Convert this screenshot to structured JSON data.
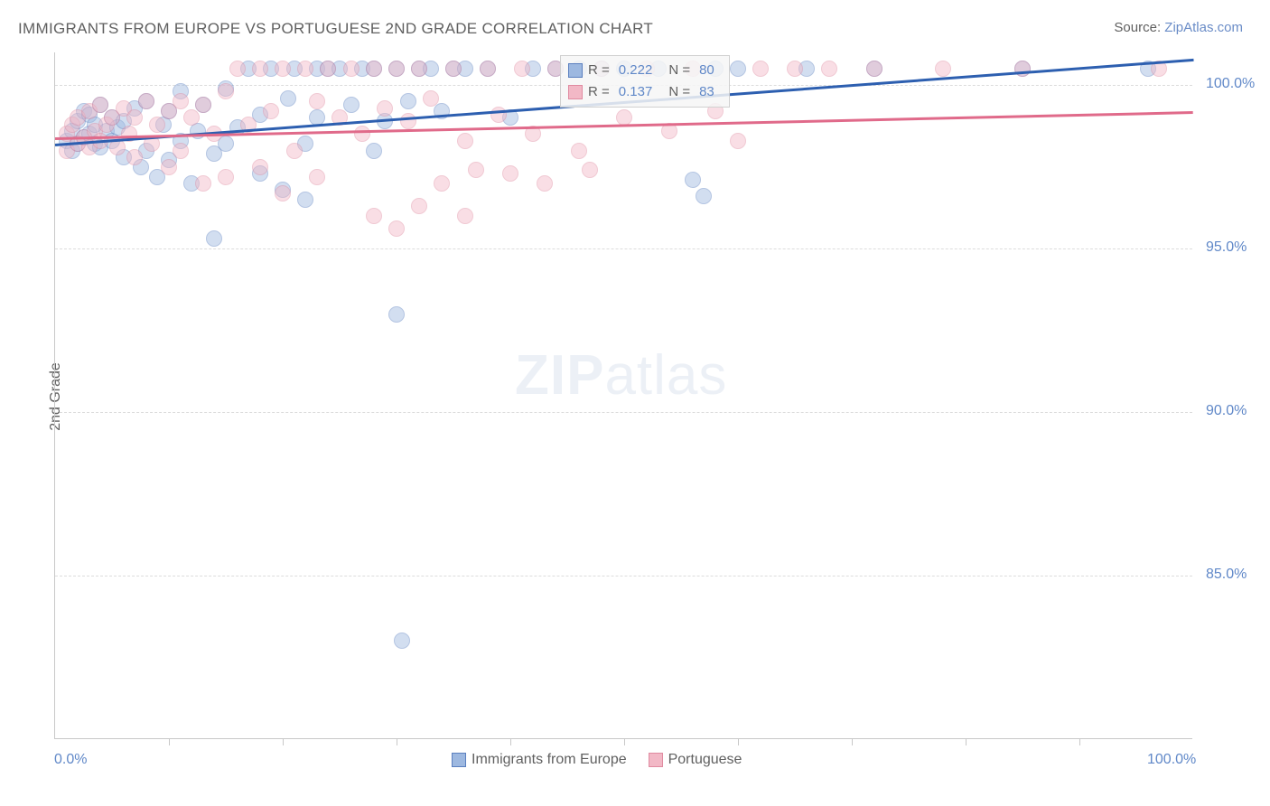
{
  "title": "IMMIGRANTS FROM EUROPE VS PORTUGUESE 2ND GRADE CORRELATION CHART",
  "source_label": "Source: ",
  "source_value": "ZipAtlas.com",
  "watermark_zip": "ZIP",
  "watermark_rest": "atlas",
  "chart": {
    "type": "scatter",
    "ylabel": "2nd Grade",
    "xlim": [
      0,
      100
    ],
    "ylim": [
      80,
      101
    ],
    "yticks": [
      {
        "v": 85.0,
        "label": "85.0%"
      },
      {
        "v": 90.0,
        "label": "90.0%"
      },
      {
        "v": 95.0,
        "label": "95.0%"
      },
      {
        "v": 100.0,
        "label": "100.0%"
      }
    ],
    "xticks_minor": [
      10,
      20,
      30,
      40,
      50,
      60,
      70,
      80,
      90
    ],
    "xtick_labels": [
      {
        "v": 0,
        "label": "0.0%"
      },
      {
        "v": 100,
        "label": "100.0%"
      }
    ],
    "background_color": "#ffffff",
    "grid_color": "#dcdcdc",
    "border_color": "#c8c8c8",
    "marker_radius": 9,
    "marker_opacity": 0.45,
    "marker_border_opacity": 0.8,
    "series": [
      {
        "name": "Immigrants from Europe",
        "label": "Immigrants from Europe",
        "fill_color": "#9db8e0",
        "border_color": "#5a7fbf",
        "trend_color": "#2d5fb0",
        "trend_width": 3,
        "trend_y0": 98.2,
        "trend_y100": 100.8,
        "stats": {
          "R_label": "R = ",
          "R": "0.222",
          "N_label": "N = ",
          "N": "80"
        },
        "points": [
          {
            "x": 1,
            "y": 98.3
          },
          {
            "x": 1.5,
            "y": 98.0
          },
          {
            "x": 1.5,
            "y": 98.6
          },
          {
            "x": 2,
            "y": 98.9
          },
          {
            "x": 2,
            "y": 98.2
          },
          {
            "x": 2.5,
            "y": 99.2
          },
          {
            "x": 2.5,
            "y": 98.4
          },
          {
            "x": 3,
            "y": 98.5
          },
          {
            "x": 3,
            "y": 99.1
          },
          {
            "x": 3.5,
            "y": 98.2
          },
          {
            "x": 3.5,
            "y": 98.8
          },
          {
            "x": 4,
            "y": 99.4
          },
          {
            "x": 4,
            "y": 98.1
          },
          {
            "x": 4.5,
            "y": 98.6
          },
          {
            "x": 5,
            "y": 99.0
          },
          {
            "x": 5,
            "y": 98.3
          },
          {
            "x": 5.5,
            "y": 98.7
          },
          {
            "x": 6,
            "y": 97.8
          },
          {
            "x": 6,
            "y": 98.9
          },
          {
            "x": 7,
            "y": 99.3
          },
          {
            "x": 7.5,
            "y": 97.5
          },
          {
            "x": 8,
            "y": 98.0
          },
          {
            "x": 8,
            "y": 99.5
          },
          {
            "x": 9,
            "y": 97.2
          },
          {
            "x": 9.5,
            "y": 98.8
          },
          {
            "x": 10,
            "y": 99.2
          },
          {
            "x": 10,
            "y": 97.7
          },
          {
            "x": 11,
            "y": 98.3
          },
          {
            "x": 11,
            "y": 99.8
          },
          {
            "x": 12,
            "y": 97.0
          },
          {
            "x": 12.5,
            "y": 98.6
          },
          {
            "x": 13,
            "y": 99.4
          },
          {
            "x": 14,
            "y": 97.9
          },
          {
            "x": 14,
            "y": 95.3
          },
          {
            "x": 15,
            "y": 98.2
          },
          {
            "x": 15,
            "y": 99.9
          },
          {
            "x": 16,
            "y": 98.7
          },
          {
            "x": 17,
            "y": 100.5
          },
          {
            "x": 18,
            "y": 97.3
          },
          {
            "x": 18,
            "y": 99.1
          },
          {
            "x": 19,
            "y": 100.5
          },
          {
            "x": 20,
            "y": 96.8
          },
          {
            "x": 20.5,
            "y": 99.6
          },
          {
            "x": 21,
            "y": 100.5
          },
          {
            "x": 22,
            "y": 98.2
          },
          {
            "x": 22,
            "y": 96.5
          },
          {
            "x": 23,
            "y": 99.0
          },
          {
            "x": 23,
            "y": 100.5
          },
          {
            "x": 24,
            "y": 100.5
          },
          {
            "x": 25,
            "y": 100.5
          },
          {
            "x": 26,
            "y": 99.4
          },
          {
            "x": 27,
            "y": 100.5
          },
          {
            "x": 28,
            "y": 98.0
          },
          {
            "x": 28,
            "y": 100.5
          },
          {
            "x": 29,
            "y": 98.9
          },
          {
            "x": 30,
            "y": 100.5
          },
          {
            "x": 30,
            "y": 93.0
          },
          {
            "x": 30.5,
            "y": 83.0
          },
          {
            "x": 31,
            "y": 99.5
          },
          {
            "x": 32,
            "y": 100.5
          },
          {
            "x": 33,
            "y": 100.5
          },
          {
            "x": 34,
            "y": 99.2
          },
          {
            "x": 35,
            "y": 100.5
          },
          {
            "x": 36,
            "y": 100.5
          },
          {
            "x": 38,
            "y": 100.5
          },
          {
            "x": 40,
            "y": 99.0
          },
          {
            "x": 42,
            "y": 100.5
          },
          {
            "x": 44,
            "y": 100.5
          },
          {
            "x": 46,
            "y": 100.5
          },
          {
            "x": 48,
            "y": 100.5
          },
          {
            "x": 50,
            "y": 100.5
          },
          {
            "x": 53,
            "y": 100.5
          },
          {
            "x": 56,
            "y": 97.1
          },
          {
            "x": 57,
            "y": 96.6
          },
          {
            "x": 58,
            "y": 100.5
          },
          {
            "x": 60,
            "y": 100.5
          },
          {
            "x": 66,
            "y": 100.5
          },
          {
            "x": 72,
            "y": 100.5
          },
          {
            "x": 85,
            "y": 100.5
          },
          {
            "x": 96,
            "y": 100.5
          }
        ]
      },
      {
        "name": "Portuguese",
        "label": "Portuguese",
        "fill_color": "#f2b8c6",
        "border_color": "#e08aa0",
        "trend_color": "#e06a8a",
        "trend_width": 3,
        "trend_y0": 98.4,
        "trend_y100": 99.2,
        "stats": {
          "R_label": "R = ",
          "R": "0.137",
          "N_label": "N = ",
          "N": "83"
        },
        "points": [
          {
            "x": 1,
            "y": 98.5
          },
          {
            "x": 1,
            "y": 98.0
          },
          {
            "x": 1.5,
            "y": 98.8
          },
          {
            "x": 2,
            "y": 98.2
          },
          {
            "x": 2,
            "y": 99.0
          },
          {
            "x": 2.5,
            "y": 98.4
          },
          {
            "x": 3,
            "y": 99.2
          },
          {
            "x": 3,
            "y": 98.1
          },
          {
            "x": 3.5,
            "y": 98.6
          },
          {
            "x": 4,
            "y": 99.4
          },
          {
            "x": 4,
            "y": 98.3
          },
          {
            "x": 4.5,
            "y": 98.8
          },
          {
            "x": 5,
            "y": 99.0
          },
          {
            "x": 5.5,
            "y": 98.1
          },
          {
            "x": 6,
            "y": 99.3
          },
          {
            "x": 6.5,
            "y": 98.5
          },
          {
            "x": 7,
            "y": 97.8
          },
          {
            "x": 7,
            "y": 99.0
          },
          {
            "x": 8,
            "y": 99.5
          },
          {
            "x": 8.5,
            "y": 98.2
          },
          {
            "x": 9,
            "y": 98.8
          },
          {
            "x": 10,
            "y": 99.2
          },
          {
            "x": 10,
            "y": 97.5
          },
          {
            "x": 11,
            "y": 99.5
          },
          {
            "x": 11,
            "y": 98.0
          },
          {
            "x": 12,
            "y": 99.0
          },
          {
            "x": 13,
            "y": 97.0
          },
          {
            "x": 13,
            "y": 99.4
          },
          {
            "x": 14,
            "y": 98.5
          },
          {
            "x": 15,
            "y": 97.2
          },
          {
            "x": 15,
            "y": 99.8
          },
          {
            "x": 16,
            "y": 100.5
          },
          {
            "x": 17,
            "y": 98.8
          },
          {
            "x": 18,
            "y": 97.5
          },
          {
            "x": 18,
            "y": 100.5
          },
          {
            "x": 19,
            "y": 99.2
          },
          {
            "x": 20,
            "y": 100.5
          },
          {
            "x": 20,
            "y": 96.7
          },
          {
            "x": 21,
            "y": 98.0
          },
          {
            "x": 22,
            "y": 100.5
          },
          {
            "x": 23,
            "y": 99.5
          },
          {
            "x": 23,
            "y": 97.2
          },
          {
            "x": 24,
            "y": 100.5
          },
          {
            "x": 25,
            "y": 99.0
          },
          {
            "x": 26,
            "y": 100.5
          },
          {
            "x": 27,
            "y": 98.5
          },
          {
            "x": 28,
            "y": 96.0
          },
          {
            "x": 28,
            "y": 100.5
          },
          {
            "x": 29,
            "y": 99.3
          },
          {
            "x": 30,
            "y": 100.5
          },
          {
            "x": 30,
            "y": 95.6
          },
          {
            "x": 31,
            "y": 98.9
          },
          {
            "x": 32,
            "y": 100.5
          },
          {
            "x": 32,
            "y": 96.3
          },
          {
            "x": 33,
            "y": 99.6
          },
          {
            "x": 34,
            "y": 97.0
          },
          {
            "x": 35,
            "y": 100.5
          },
          {
            "x": 36,
            "y": 98.3
          },
          {
            "x": 36,
            "y": 96.0
          },
          {
            "x": 37,
            "y": 97.4
          },
          {
            "x": 38,
            "y": 100.5
          },
          {
            "x": 39,
            "y": 99.1
          },
          {
            "x": 40,
            "y": 97.3
          },
          {
            "x": 41,
            "y": 100.5
          },
          {
            "x": 42,
            "y": 98.5
          },
          {
            "x": 43,
            "y": 97.0
          },
          {
            "x": 44,
            "y": 100.5
          },
          {
            "x": 46,
            "y": 98.0
          },
          {
            "x": 47,
            "y": 97.4
          },
          {
            "x": 48,
            "y": 100.5
          },
          {
            "x": 50,
            "y": 99.0
          },
          {
            "x": 52,
            "y": 100.5
          },
          {
            "x": 54,
            "y": 98.6
          },
          {
            "x": 56,
            "y": 100.5
          },
          {
            "x": 58,
            "y": 99.2
          },
          {
            "x": 60,
            "y": 98.3
          },
          {
            "x": 62,
            "y": 100.5
          },
          {
            "x": 65,
            "y": 100.5
          },
          {
            "x": 68,
            "y": 100.5
          },
          {
            "x": 72,
            "y": 100.5
          },
          {
            "x": 78,
            "y": 100.5
          },
          {
            "x": 85,
            "y": 100.5
          },
          {
            "x": 97,
            "y": 100.5
          }
        ]
      }
    ]
  }
}
